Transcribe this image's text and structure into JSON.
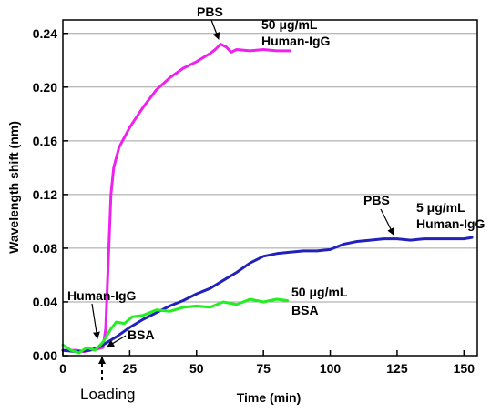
{
  "chart_data": {
    "type": "line",
    "xlabel": "Time (min)",
    "ylabel": "Wavelength shift (nm)",
    "xlim": [
      0,
      155
    ],
    "ylim": [
      0,
      0.25
    ],
    "xticks": [
      "0",
      "25",
      "50",
      "75",
      "100",
      "125",
      "150"
    ],
    "yticks": [
      "0.00",
      "0.04",
      "0.08",
      "0.12",
      "0.16",
      "0.20",
      "0.24"
    ],
    "grid": "horizontal",
    "series": [
      {
        "color": "#ee22ee",
        "points": [
          [
            0,
            0.004
          ],
          [
            5,
            0.004
          ],
          [
            8,
            0.003
          ],
          [
            10,
            0.004
          ],
          [
            13,
            0.005
          ],
          [
            15,
            0.006
          ],
          [
            16,
            0.02
          ],
          [
            17,
            0.07
          ],
          [
            18,
            0.12
          ],
          [
            19,
            0.14
          ],
          [
            21,
            0.155
          ],
          [
            25,
            0.17
          ],
          [
            30,
            0.185
          ],
          [
            35,
            0.198
          ],
          [
            40,
            0.207
          ],
          [
            45,
            0.214
          ],
          [
            50,
            0.219
          ],
          [
            55,
            0.225
          ],
          [
            57,
            0.228
          ],
          [
            59,
            0.232
          ],
          [
            61,
            0.23
          ],
          [
            63,
            0.226
          ],
          [
            65,
            0.228
          ],
          [
            70,
            0.227
          ],
          [
            75,
            0.228
          ],
          [
            80,
            0.227
          ],
          [
            85,
            0.227
          ]
        ]
      },
      {
        "color": "#2222bb",
        "points": [
          [
            0,
            0.004
          ],
          [
            5,
            0.003
          ],
          [
            10,
            0.004
          ],
          [
            13,
            0.006
          ],
          [
            15,
            0.008
          ],
          [
            20,
            0.014
          ],
          [
            25,
            0.021
          ],
          [
            30,
            0.027
          ],
          [
            35,
            0.032
          ],
          [
            40,
            0.037
          ],
          [
            45,
            0.041
          ],
          [
            50,
            0.046
          ],
          [
            55,
            0.05
          ],
          [
            60,
            0.056
          ],
          [
            65,
            0.062
          ],
          [
            70,
            0.069
          ],
          [
            75,
            0.074
          ],
          [
            80,
            0.076
          ],
          [
            85,
            0.077
          ],
          [
            90,
            0.078
          ],
          [
            95,
            0.078
          ],
          [
            100,
            0.079
          ],
          [
            105,
            0.083
          ],
          [
            110,
            0.085
          ],
          [
            115,
            0.086
          ],
          [
            120,
            0.087
          ],
          [
            125,
            0.087
          ],
          [
            130,
            0.086
          ],
          [
            135,
            0.087
          ],
          [
            140,
            0.087
          ],
          [
            145,
            0.087
          ],
          [
            150,
            0.087
          ],
          [
            153,
            0.088
          ]
        ]
      },
      {
        "color": "#22ee22",
        "points": [
          [
            0,
            0.008
          ],
          [
            3,
            0.004
          ],
          [
            6,
            0.002
          ],
          [
            9,
            0.006
          ],
          [
            12,
            0.004
          ],
          [
            15,
            0.01
          ],
          [
            18,
            0.02
          ],
          [
            20,
            0.025
          ],
          [
            23,
            0.024
          ],
          [
            26,
            0.029
          ],
          [
            30,
            0.03
          ],
          [
            35,
            0.034
          ],
          [
            40,
            0.033
          ],
          [
            45,
            0.036
          ],
          [
            50,
            0.037
          ],
          [
            55,
            0.036
          ],
          [
            60,
            0.04
          ],
          [
            65,
            0.038
          ],
          [
            70,
            0.042
          ],
          [
            75,
            0.04
          ],
          [
            80,
            0.042
          ],
          [
            84,
            0.041
          ]
        ]
      }
    ],
    "annotations": {
      "pbs_top": "PBS",
      "human_igg_50_l1": "50 μg/mL",
      "human_igg_50_l2": "Human-IgG",
      "pbs_mid": "PBS",
      "human_igg_5_l1": "5 μg/mL",
      "human_igg_5_l2": "Human-IgG",
      "bsa_50_l1": "50 μg/mL",
      "bsa_50_l2": "BSA",
      "human_igg_left": "Human-IgG",
      "bsa_left": "BSA",
      "loading": "Loading"
    }
  }
}
